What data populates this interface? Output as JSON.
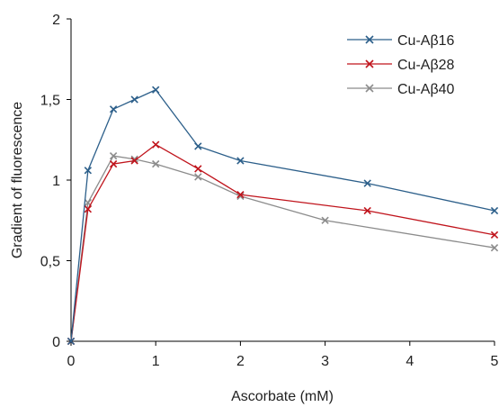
{
  "chart_data": {
    "type": "line",
    "xlabel": "Ascorbate (mM)",
    "ylabel": "Gradient of fluorescence",
    "xlim": [
      0,
      5
    ],
    "ylim": [
      0,
      2
    ],
    "x_ticks": [
      "0",
      "1",
      "2",
      "3",
      "4",
      "5"
    ],
    "y_ticks": [
      "0",
      "0,5",
      "1",
      "1,5",
      "2"
    ],
    "grid": false,
    "legend_position": "top-right",
    "series": [
      {
        "name": "Cu-Aβ16",
        "color": "#2c5f8a",
        "marker": "x",
        "points": [
          [
            0,
            0
          ],
          [
            0.2,
            1.06
          ],
          [
            0.5,
            1.44
          ],
          [
            0.75,
            1.5
          ],
          [
            1,
            1.56
          ],
          [
            1.5,
            1.21
          ],
          [
            2,
            1.12
          ],
          [
            3.5,
            0.98
          ],
          [
            5,
            0.81
          ]
        ]
      },
      {
        "name": "Cu-Aβ28",
        "color": "#c0141c",
        "marker": "x",
        "points": [
          [
            0,
            0
          ],
          [
            0.2,
            0.82
          ],
          [
            0.5,
            1.1
          ],
          [
            0.75,
            1.12
          ],
          [
            1,
            1.22
          ],
          [
            1.5,
            1.07
          ],
          [
            2,
            0.91
          ],
          [
            3.5,
            0.81
          ],
          [
            5,
            0.66
          ]
        ]
      },
      {
        "name": "Cu-Aβ40",
        "color": "#8c8c8c",
        "marker": "x",
        "points": [
          [
            0,
            0
          ],
          [
            0.2,
            0.86
          ],
          [
            0.5,
            1.15
          ],
          [
            0.75,
            1.13
          ],
          [
            1,
            1.1
          ],
          [
            1.5,
            1.02
          ],
          [
            2,
            0.9
          ],
          [
            3,
            0.75
          ],
          [
            5,
            0.58
          ]
        ]
      }
    ]
  }
}
